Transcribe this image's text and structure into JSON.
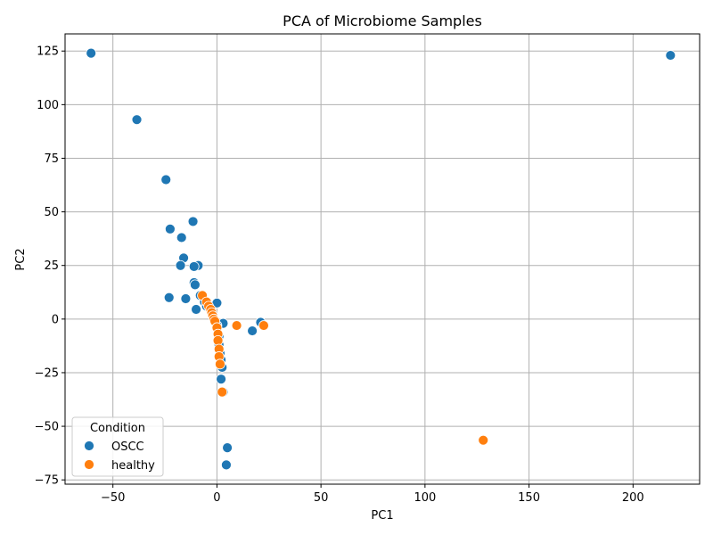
{
  "chart_data": {
    "type": "scatter",
    "title": "PCA of Microbiome Samples",
    "xlabel": "PC1",
    "ylabel": "PC2",
    "xlim": [
      -73,
      232
    ],
    "ylim": [
      -77,
      133
    ],
    "xticks": [
      -50,
      0,
      50,
      100,
      150,
      200
    ],
    "yticks": [
      -75,
      -50,
      -25,
      0,
      25,
      50,
      75,
      100,
      125
    ],
    "grid": true,
    "legend": {
      "title": "Condition",
      "placement": "lower-left"
    },
    "series": [
      {
        "name": "OSCC",
        "color": "#1f77b4",
        "points": [
          [
            -60.5,
            124
          ],
          [
            218,
            123
          ],
          [
            -38.5,
            93
          ],
          [
            -24.5,
            65
          ],
          [
            -11.5,
            45.5
          ],
          [
            -22.5,
            42
          ],
          [
            -17,
            38
          ],
          [
            -16,
            28.5
          ],
          [
            -17.5,
            25
          ],
          [
            -9,
            25
          ],
          [
            -11,
            24.5
          ],
          [
            -11,
            17
          ],
          [
            -10.5,
            16
          ],
          [
            -8,
            11
          ],
          [
            -6,
            8
          ],
          [
            -23,
            10
          ],
          [
            -15,
            9.5
          ],
          [
            0,
            7.5
          ],
          [
            -10,
            4.5
          ],
          [
            -5,
            6
          ],
          [
            -3,
            4
          ],
          [
            3,
            -2
          ],
          [
            21,
            -1.5
          ],
          [
            17,
            -5.5
          ],
          [
            0,
            -3
          ],
          [
            1,
            -8
          ],
          [
            1,
            -12
          ],
          [
            1.5,
            -16
          ],
          [
            2,
            -19
          ],
          [
            2.5,
            -22.5
          ],
          [
            2,
            -28
          ],
          [
            3,
            -34
          ],
          [
            5,
            -60
          ],
          [
            4.5,
            -68
          ]
        ]
      },
      {
        "name": "healthy",
        "color": "#ff7f0e",
        "points": [
          [
            -7,
            11
          ],
          [
            -5,
            8
          ],
          [
            -4,
            6
          ],
          [
            -3,
            4.5
          ],
          [
            -2.5,
            3
          ],
          [
            -2,
            1.5
          ],
          [
            -1.5,
            0
          ],
          [
            -1,
            -1
          ],
          [
            9.5,
            -3
          ],
          [
            22.5,
            -3
          ],
          [
            0,
            -4
          ],
          [
            0.5,
            -7
          ],
          [
            0.5,
            -10
          ],
          [
            1,
            -14
          ],
          [
            1,
            -17.5
          ],
          [
            1.5,
            -21
          ],
          [
            2.5,
            -34
          ],
          [
            128,
            -56.5
          ]
        ]
      }
    ]
  }
}
